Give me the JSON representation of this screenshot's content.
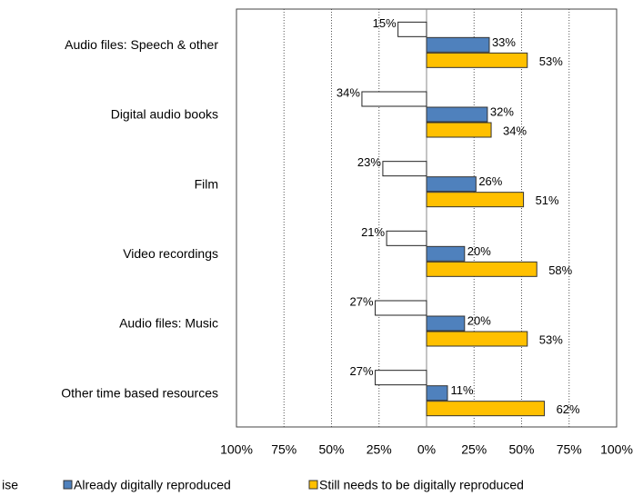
{
  "chart_data": {
    "type": "bar",
    "orientation": "horizontal",
    "categories": [
      "Audio files: Speech & other",
      "Digital audio books",
      "Film",
      "Video recordings",
      "Audio files: Music",
      "Other time based resources"
    ],
    "series": [
      {
        "name": "ise",
        "color": "#ffffff",
        "values": [
          -15,
          -34,
          -23,
          -21,
          -27,
          -27
        ],
        "value_labels": [
          "15%",
          "34%",
          "23%",
          "21%",
          "27%",
          "27%"
        ]
      },
      {
        "name": "Already digitally reproduced",
        "color": "#4f81bd",
        "values": [
          33,
          32,
          26,
          20,
          20,
          11
        ],
        "value_labels": [
          "33%",
          "32%",
          "26%",
          "20%",
          "20%",
          "11%"
        ]
      },
      {
        "name": "Still needs to be digitally reproduced",
        "color": "#ffc000",
        "values": [
          53,
          34,
          51,
          58,
          53,
          62
        ],
        "value_labels": [
          "53%",
          "34%",
          "51%",
          "58%",
          "53%",
          "62%"
        ]
      }
    ],
    "xlim": [
      -100,
      100
    ],
    "xticks": [
      {
        "value": -100,
        "label": "100%"
      },
      {
        "value": -75,
        "label": "75%"
      },
      {
        "value": -50,
        "label": "50%"
      },
      {
        "value": -25,
        "label": "25%"
      },
      {
        "value": 0,
        "label": "0%"
      },
      {
        "value": 25,
        "label": "25%"
      },
      {
        "value": 50,
        "label": "50%"
      },
      {
        "value": 75,
        "label": "75%"
      },
      {
        "value": 100,
        "label": "100%"
      }
    ],
    "grid": true
  }
}
